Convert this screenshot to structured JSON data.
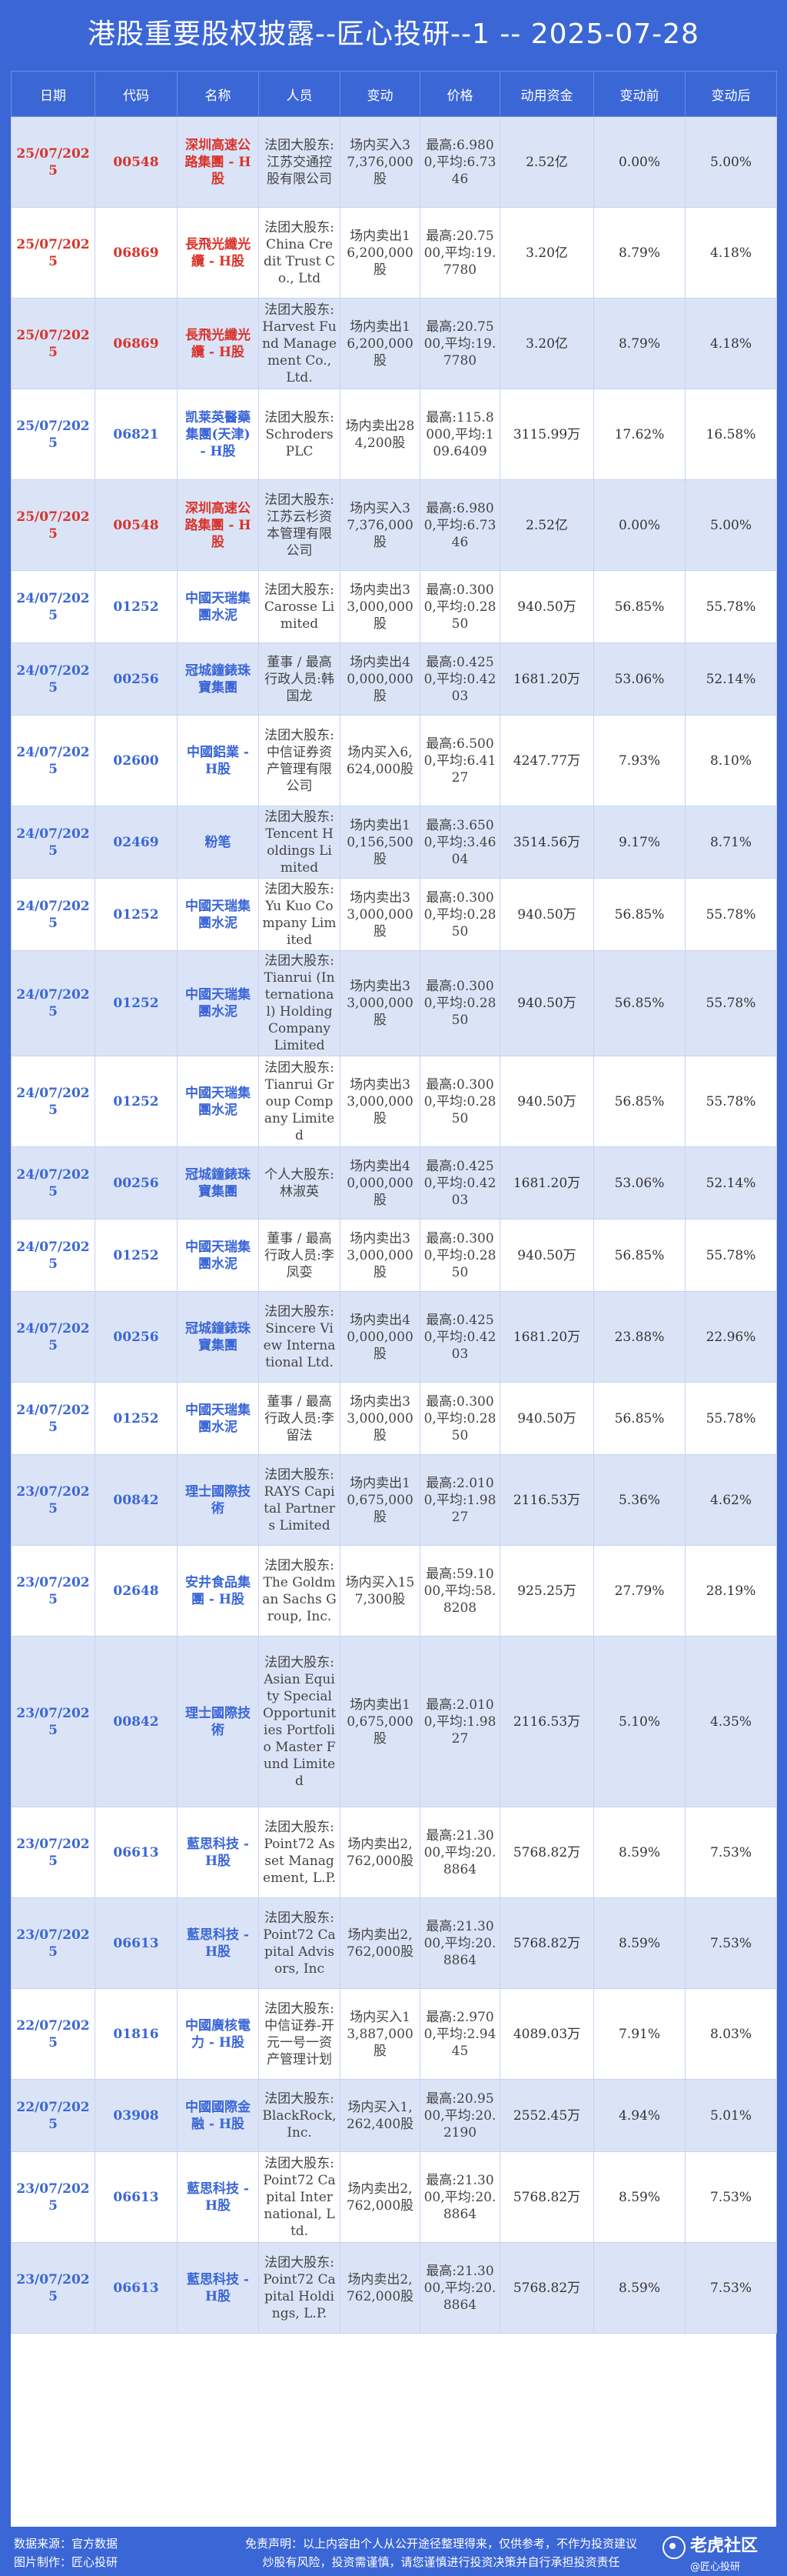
{
  "title": "港股重要股权披露--匠心投研--1 -- 2025-07-28",
  "headers": [
    "日期",
    "代码",
    "名称",
    "人员",
    "变动",
    "价格",
    "动用资金",
    "变动前",
    "变动后"
  ],
  "rows": [
    {
      "hl": true,
      "date": "25/07/2025",
      "code": "00548",
      "name": "深圳高速公路集團 - H股",
      "person": "法团大股东:江苏交通控股有限公司",
      "action": "场内买入37,376,000股",
      "price": "最高:6.9800,平均:6.7346",
      "amount": "2.52亿",
      "before": "0.00%",
      "after": "5.00%"
    },
    {
      "hl": true,
      "date": "25/07/2025",
      "code": "06869",
      "name": "長飛光纖光纜 - H股",
      "person": "法团大股东:China Credit Trust Co., Ltd",
      "action": "场内卖出16,200,000股",
      "price": "最高:20.7500,平均:19.7780",
      "amount": "3.20亿",
      "before": "8.79%",
      "after": "4.18%"
    },
    {
      "hl": true,
      "date": "25/07/2025",
      "code": "06869",
      "name": "長飛光纖光纜 - H股",
      "person": "法团大股东:Harvest Fund Management Co., Ltd.",
      "action": "场内卖出16,200,000股",
      "price": "最高:20.7500,平均:19.7780",
      "amount": "3.20亿",
      "before": "8.79%",
      "after": "4.18%"
    },
    {
      "hl": false,
      "date": "25/07/2025",
      "code": "06821",
      "name": "凯莱英醫藥集團(天津) - H股",
      "person": "法团大股东:Schroders PLC",
      "action": "场内卖出284,200股",
      "price": "最高:115.8000,平均:109.6409",
      "amount": "3115.99万",
      "before": "17.62%",
      "after": "16.58%"
    },
    {
      "hl": true,
      "date": "25/07/2025",
      "code": "00548",
      "name": "深圳高速公路集團 - H股",
      "person": "法团大股东:江苏云杉资本管理有限公司",
      "action": "场内买入37,376,000股",
      "price": "最高:6.9800,平均:6.7346",
      "amount": "2.52亿",
      "before": "0.00%",
      "after": "5.00%"
    },
    {
      "hl": false,
      "date": "24/07/2025",
      "code": "01252",
      "name": "中國天瑞集團水泥",
      "person": "法团大股东:Carosse Limited",
      "action": "场内卖出33,000,000股",
      "price": "最高:0.3000,平均:0.2850",
      "amount": "940.50万",
      "before": "56.85%",
      "after": "55.78%"
    },
    {
      "hl": false,
      "date": "24/07/2025",
      "code": "00256",
      "name": "冠城鐘錶珠寶集團",
      "person": "董事 / 最高行政人员:韩国龙",
      "action": "场内卖出40,000,000股",
      "price": "最高:0.4250,平均:0.4203",
      "amount": "1681.20万",
      "before": "53.06%",
      "after": "52.14%"
    },
    {
      "hl": false,
      "date": "24/07/2025",
      "code": "02600",
      "name": "中國鋁業 - H股",
      "person": "法团大股东:中信证券资产管理有限公司",
      "action": "场内买入6,624,000股",
      "price": "最高:6.5000,平均:6.4127",
      "amount": "4247.77万",
      "before": "7.93%",
      "after": "8.10%"
    },
    {
      "hl": false,
      "date": "24/07/2025",
      "code": "02469",
      "name": "粉笔",
      "person": "法团大股东:Tencent Holdings Limited",
      "action": "场内卖出10,156,500股",
      "price": "最高:3.6500,平均:3.4604",
      "amount": "3514.56万",
      "before": "9.17%",
      "after": "8.71%"
    },
    {
      "hl": false,
      "date": "24/07/2025",
      "code": "01252",
      "name": "中國天瑞集團水泥",
      "person": "法团大股东:Yu Kuo Company Limited",
      "action": "场内卖出33,000,000股",
      "price": "最高:0.3000,平均:0.2850",
      "amount": "940.50万",
      "before": "56.85%",
      "after": "55.78%"
    },
    {
      "hl": false,
      "date": "24/07/2025",
      "code": "01252",
      "name": "中國天瑞集團水泥",
      "person": "法团大股东:Tianrui (International) Holding Company Limited",
      "action": "场内卖出33,000,000股",
      "price": "最高:0.3000,平均:0.2850",
      "amount": "940.50万",
      "before": "56.85%",
      "after": "55.78%"
    },
    {
      "hl": false,
      "date": "24/07/2025",
      "code": "01252",
      "name": "中國天瑞集團水泥",
      "person": "法团大股东:Tianrui Group Company Limited",
      "action": "场内卖出33,000,000股",
      "price": "最高:0.3000,平均:0.2850",
      "amount": "940.50万",
      "before": "56.85%",
      "after": "55.78%"
    },
    {
      "hl": false,
      "date": "24/07/2025",
      "code": "00256",
      "name": "冠城鐘錶珠寶集團",
      "person": "个人大股东:林淑英",
      "action": "场内卖出40,000,000股",
      "price": "最高:0.4250,平均:0.4203",
      "amount": "1681.20万",
      "before": "53.06%",
      "after": "52.14%"
    },
    {
      "hl": false,
      "date": "24/07/2025",
      "code": "01252",
      "name": "中國天瑞集團水泥",
      "person": "董事 / 最高行政人员:李凤娈",
      "action": "场内卖出33,000,000股",
      "price": "最高:0.3000,平均:0.2850",
      "amount": "940.50万",
      "before": "56.85%",
      "after": "55.78%"
    },
    {
      "hl": false,
      "date": "24/07/2025",
      "code": "00256",
      "name": "冠城鐘錶珠寶集團",
      "person": "法团大股东:Sincere View International Ltd.",
      "action": "场内卖出40,000,000股",
      "price": "最高:0.4250,平均:0.4203",
      "amount": "1681.20万",
      "before": "23.88%",
      "after": "22.96%"
    },
    {
      "hl": false,
      "date": "24/07/2025",
      "code": "01252",
      "name": "中國天瑞集團水泥",
      "person": "董事 / 最高行政人员:李留法",
      "action": "场内卖出33,000,000股",
      "price": "最高:0.3000,平均:0.2850",
      "amount": "940.50万",
      "before": "56.85%",
      "after": "55.78%"
    },
    {
      "hl": false,
      "date": "23/07/2025",
      "code": "00842",
      "name": "理士國際技術",
      "person": "法团大股东:RAYS Capital Partners Limited",
      "action": "场内卖出10,675,000股",
      "price": "最高:2.0100,平均:1.9827",
      "amount": "2116.53万",
      "before": "5.36%",
      "after": "4.62%"
    },
    {
      "hl": false,
      "date": "23/07/2025",
      "code": "02648",
      "name": "安井食品集團 - H股",
      "person": "法团大股东:The Goldman Sachs Group, Inc.",
      "action": "场内买入157,300股",
      "price": "最高:59.1000,平均:58.8208",
      "amount": "925.25万",
      "before": "27.79%",
      "after": "28.19%"
    },
    {
      "hl": false,
      "date": "23/07/2025",
      "code": "00842",
      "name": "理士國際技術",
      "person": "法团大股东:Asian Equity Special Opportunities Portfolio Master Fund Limited",
      "action": "场内卖出10,675,000股",
      "price": "最高:2.0100,平均:1.9827",
      "amount": "2116.53万",
      "before": "5.10%",
      "after": "4.35%"
    },
    {
      "hl": false,
      "date": "23/07/2025",
      "code": "06613",
      "name": "藍思科技 - H股",
      "person": "法团大股东:Point72 Asset Management, L.P.",
      "action": "场内卖出2,762,000股",
      "price": "最高:21.3000,平均:20.8864",
      "amount": "5768.82万",
      "before": "8.59%",
      "after": "7.53%"
    },
    {
      "hl": false,
      "date": "23/07/2025",
      "code": "06613",
      "name": "藍思科技 - H股",
      "person": "法团大股东:Point72 Capital Advisors, Inc",
      "action": "场内卖出2,762,000股",
      "price": "最高:21.3000,平均:20.8864",
      "amount": "5768.82万",
      "before": "8.59%",
      "after": "7.53%"
    },
    {
      "hl": false,
      "date": "22/07/2025",
      "code": "01816",
      "name": "中國廣核電力 - H股",
      "person": "法团大股东:中信证券-开元一号一资产管理计划",
      "action": "场内买入13,887,000股",
      "price": "最高:2.9700,平均:2.9445",
      "amount": "4089.03万",
      "before": "7.91%",
      "after": "8.03%"
    },
    {
      "hl": false,
      "date": "22/07/2025",
      "code": "03908",
      "name": "中國國際金融 - H股",
      "person": "法团大股东:BlackRock, Inc.",
      "action": "场内买入1,262,400股",
      "price": "最高:20.9500,平均:20.2190",
      "amount": "2552.45万",
      "before": "4.94%",
      "after": "5.01%"
    },
    {
      "hl": false,
      "date": "23/07/2025",
      "code": "06613",
      "name": "藍思科技 - H股",
      "person": "法团大股东:Point72 Capital International, Ltd.",
      "action": "场内卖出2,762,000股",
      "price": "最高:21.3000,平均:20.8864",
      "amount": "5768.82万",
      "before": "8.59%",
      "after": "7.53%"
    },
    {
      "hl": false,
      "date": "23/07/2025",
      "code": "06613",
      "name": "藍思科技 - H股",
      "person": "法团大股东:Point72 Capital Holdings, L.P.",
      "action": "场内卖出2,762,000股",
      "price": "最高:21.3000,平均:20.8864",
      "amount": "5768.82万",
      "before": "8.59%",
      "after": "7.53%"
    }
  ],
  "footer": {
    "source": "数据来源：官方数据",
    "maker": "图片制作：匠心投研",
    "disclaimer_1": "免责声明：以上内容由个人从公开途径整理得来，仅供参考，不作为投资建议",
    "disclaimer_2": "炒股有风险，投资需谨慎，请您谨慎进行投资决策并自行承担投资责任",
    "brand": "老虎社区",
    "handle": "@匠心投研"
  },
  "colors": {
    "background": "#3b66d6",
    "highlight_text": "#d9342b",
    "code_text": "#3b66d6",
    "row_alt": "#dbe4f7"
  }
}
